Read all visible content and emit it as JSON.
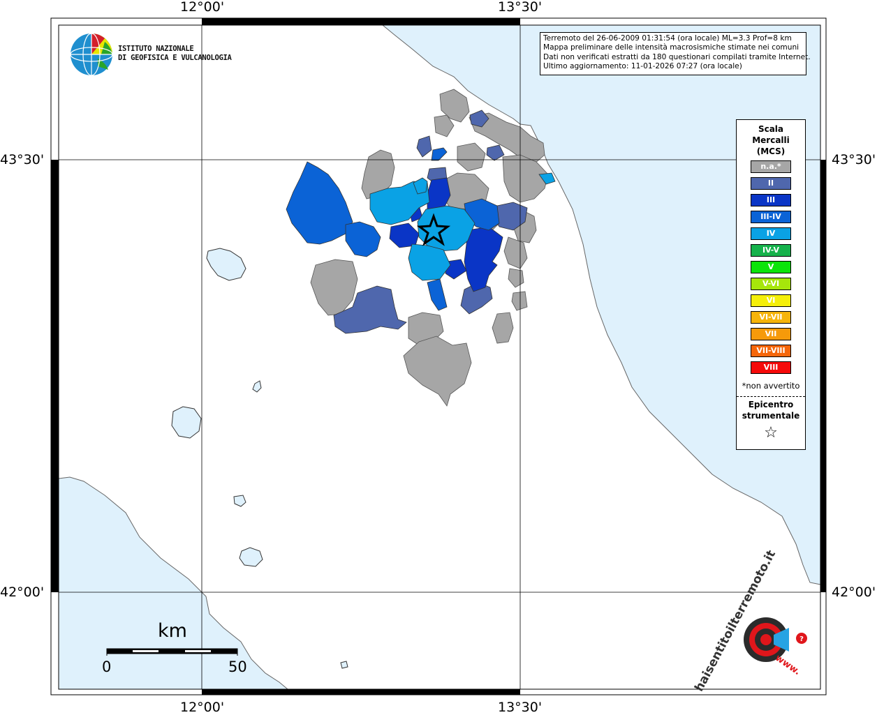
{
  "map": {
    "lon_labels": [
      "12°00'",
      "13°30'"
    ],
    "lat_labels": [
      "43°30'",
      "42°00'"
    ]
  },
  "logo": {
    "line1": "ISTITUTO NAZIONALE",
    "line2": "DI GEOFISICA E VULCANOLOGIA"
  },
  "info": {
    "line1": "Terremoto del 26-06-2009 01:31:54 (ora locale) ML=3.3 Prof=8 km",
    "line2": "Mappa preliminare delle intensità macrosismiche stimate nei comuni",
    "line3": "Dati non verificati estratti da 180 questionari compilati tramite Internet.",
    "line4": "Ultimo aggiornamento: 11-01-2026 07:27 (ora locale)"
  },
  "legend": {
    "title_line1": "Scala",
    "title_line2": "Mercalli",
    "title_line3": "(MCS)",
    "items": [
      {
        "label": "n.a.*",
        "color": "#a6a6a6"
      },
      {
        "label": "II",
        "color": "#4f67ad"
      },
      {
        "label": "III",
        "color": "#0a35c6"
      },
      {
        "label": "III-IV",
        "color": "#0b63d6"
      },
      {
        "label": "IV",
        "color": "#0aa2e5"
      },
      {
        "label": "IV-V",
        "color": "#16b24b"
      },
      {
        "label": "V",
        "color": "#0be40a"
      },
      {
        "label": "V-VI",
        "color": "#a6e60b"
      },
      {
        "label": "VI",
        "color": "#f5ef0a"
      },
      {
        "label": "VI-VII",
        "color": "#f6b40a"
      },
      {
        "label": "VII",
        "color": "#f69a0a"
      },
      {
        "label": "VII-VIII",
        "color": "#f5660a"
      },
      {
        "label": "VIII",
        "color": "#f50a0a"
      }
    ],
    "note": "*non avvertito",
    "epicenter_line1": "Epicentro",
    "epicenter_line2": "strumentale"
  },
  "scalebar": {
    "unit": "km",
    "start": "0",
    "end": "50"
  },
  "haisentito": {
    "text": "haisentitoilterremoto.it",
    "www": "www."
  },
  "colors": {
    "sea": "#dff1fc",
    "na": "#a6a6a6",
    "ii": "#4f67ad",
    "iii": "#0a35c6",
    "iiiiv": "#0b63d6",
    "iv": "#0aa2e5"
  }
}
